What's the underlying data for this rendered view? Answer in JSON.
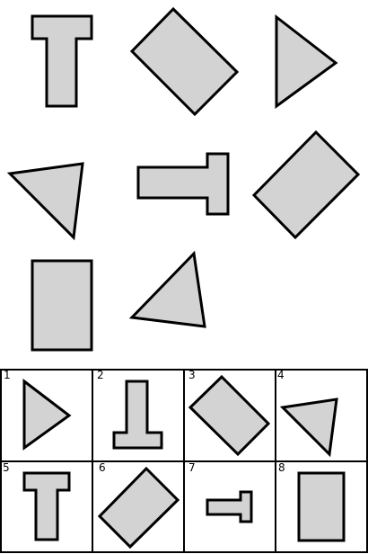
{
  "puzzle": {
    "matrix_cells": [
      {
        "shape": "T-block",
        "orientation": "upright"
      },
      {
        "shape": "rectangle",
        "orientation": "tilted"
      },
      {
        "shape": "triangle",
        "orientation": "pointing-right"
      },
      {
        "shape": "triangle",
        "orientation": "pointing-down-left"
      },
      {
        "shape": "T-block",
        "orientation": "rotated-right"
      },
      {
        "shape": "rectangle",
        "orientation": "tilted"
      },
      {
        "shape": "rectangle",
        "orientation": "upright"
      },
      {
        "shape": "triangle",
        "orientation": "pointing-up-left"
      }
    ]
  },
  "answer_options": [
    {
      "number": "1",
      "shape": "triangle"
    },
    {
      "number": "2",
      "shape": "T-block"
    },
    {
      "number": "3",
      "shape": "rectangle"
    },
    {
      "number": "4",
      "shape": "triangle"
    },
    {
      "number": "5",
      "shape": "T-block"
    },
    {
      "number": "6",
      "shape": "rectangle"
    },
    {
      "number": "7",
      "shape": "T-block"
    },
    {
      "number": "8",
      "shape": "rectangle"
    }
  ]
}
